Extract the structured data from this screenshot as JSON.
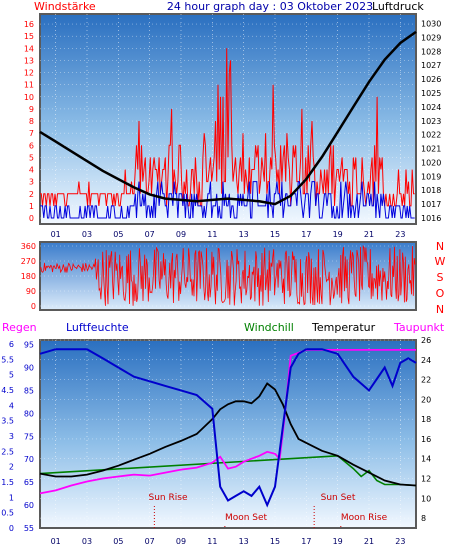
{
  "header": {
    "left": "Windstärke",
    "center": "24 hour graph day : 03 Oktober 2023",
    "right": "Luftdruck"
  },
  "wind_dir_labels": [
    "N",
    "W",
    "S",
    "O",
    "N"
  ],
  "bottom_titles": {
    "regen": "Regen",
    "luftfeuchte": "Luftfeuchte",
    "windchill": "Windchill",
    "temperatur": "Temperatur",
    "taupunkt": "Taupunkt"
  },
  "events": {
    "sun_rise": "Sun Rise",
    "sun_set": "Sun Set",
    "moon_set": "Moon Set",
    "moon_rise": "Moon Rise"
  },
  "colors": {
    "frame": "#5a5a5a",
    "sky_top": "#2a6fc0",
    "sky_bottom": "#f2f8ff",
    "wind_red": "#ff0000",
    "wind_blue": "#0000dd",
    "pressure": "#000000",
    "humidity": "#0000cc",
    "dewpoint": "#ff00ff",
    "windchill": "#008000",
    "temperature": "#000000",
    "events": "#cc0000"
  },
  "chart_data": [
    {
      "type": "line",
      "title": "24 hour graph day : 03 Oktober 2023",
      "x_ticks": [
        "01",
        "03",
        "05",
        "07",
        "09",
        "11",
        "13",
        "15",
        "17",
        "19",
        "21",
        "23"
      ],
      "y_left_label": "Windstärke",
      "y_left_ticks": [
        0,
        1,
        2,
        3,
        4,
        5,
        6,
        7,
        8,
        9,
        10,
        11,
        12,
        13,
        14,
        15,
        16
      ],
      "y_right_label": "Luftdruck",
      "y_right_ticks": [
        1016,
        1017,
        1018,
        1019,
        1020,
        1021,
        1022,
        1023,
        1024,
        1025,
        1026,
        1027,
        1028,
        1029,
        1030
      ],
      "series": [
        {
          "name": "Luftdruck",
          "x": [
            0,
            1,
            2,
            3,
            4,
            5,
            6,
            7,
            8,
            9,
            10,
            11,
            12,
            13,
            14,
            15,
            16,
            17,
            18,
            19,
            20,
            21,
            22,
            23,
            24
          ],
          "values": [
            1022.2,
            1021.5,
            1020.8,
            1020.1,
            1019.4,
            1018.8,
            1018.2,
            1017.7,
            1017.4,
            1017.3,
            1017.2,
            1017.3,
            1017.4,
            1017.3,
            1017.2,
            1017.0,
            1017.6,
            1018.8,
            1020.4,
            1022.2,
            1024.0,
            1025.8,
            1027.4,
            1028.6,
            1029.4
          ]
        }
      ]
    },
    {
      "type": "line",
      "y_left_ticks": [
        0,
        90,
        180,
        270,
        360
      ],
      "series": [
        {
          "name": "",
          "description_values": "random wind direction 0-360"
        }
      ]
    },
    {
      "type": "line",
      "x_ticks": [
        "01",
        "03",
        "05",
        "07",
        "09",
        "11",
        "13",
        "15",
        "17",
        "19",
        "21",
        "23"
      ],
      "y_regen_ticks": [
        0,
        0.5,
        1,
        1.5,
        2,
        2.5,
        3,
        3.5,
        4,
        4.5,
        5,
        5.5,
        6
      ],
      "y_luftfeuchte_ticks": [
        55,
        60,
        65,
        70,
        75,
        80,
        85,
        90,
        95
      ],
      "y_temp_ticks": [
        8,
        10,
        12,
        14,
        16,
        18,
        20,
        22,
        24,
        26
      ],
      "series": [
        {
          "name": "Luftfeuchte",
          "x": [
            0,
            1,
            2,
            3,
            4,
            5,
            6,
            7,
            8,
            9,
            10,
            11,
            11.5,
            12,
            12.5,
            13,
            13.5,
            14,
            14.5,
            15,
            15.5,
            16,
            16.5,
            17,
            18,
            19,
            20,
            21,
            22,
            22.5,
            23,
            23.5,
            24
          ],
          "values": [
            93,
            94,
            94,
            94,
            92,
            90,
            88,
            87,
            86,
            85,
            84,
            81,
            64,
            61,
            62,
            63,
            62,
            64,
            60,
            64,
            77,
            90,
            93,
            94,
            94,
            93,
            88,
            85,
            90,
            86,
            91,
            92,
            91
          ]
        },
        {
          "name": "Temperatur",
          "x": [
            0,
            1,
            2,
            3,
            4,
            5,
            6,
            7,
            8,
            9,
            10,
            11,
            11.5,
            12,
            12.5,
            13,
            13.5,
            14,
            14.5,
            15,
            15.5,
            16,
            16.5,
            17,
            18,
            19,
            20,
            21,
            22,
            23,
            24
          ],
          "values": [
            12.5,
            12.2,
            12.2,
            12.4,
            12.8,
            13.3,
            13.9,
            14.5,
            15.2,
            15.8,
            16.5,
            18.0,
            19.0,
            19.5,
            19.8,
            19.8,
            19.6,
            20.3,
            21.6,
            21.0,
            19.5,
            17.5,
            16.0,
            15.6,
            14.8,
            14.3,
            13.4,
            12.6,
            11.8,
            11.4,
            11.3
          ]
        },
        {
          "name": "Windchill",
          "x": [
            0,
            19,
            20,
            20.5,
            21,
            21.5,
            22,
            23,
            24
          ],
          "values": [
            12.5,
            14.3,
            13.0,
            12.2,
            12.8,
            11.8,
            11.4,
            11.4,
            11.3
          ]
        },
        {
          "name": "Taupunkt",
          "x": [
            0,
            1,
            2,
            3,
            4,
            5,
            6,
            7,
            8,
            9,
            10,
            11,
            11.5,
            12,
            12.5,
            13,
            13.5,
            14,
            14.5,
            15,
            15.3,
            15.6,
            16,
            16.5,
            17,
            18,
            19,
            20,
            21,
            22,
            23,
            24
          ],
          "values": [
            10.5,
            10.8,
            11.3,
            11.7,
            12.0,
            12.2,
            12.4,
            12.3,
            12.6,
            12.9,
            13.1,
            13.6,
            14.2,
            13.0,
            13.2,
            13.7,
            14.0,
            14.3,
            14.7,
            14.5,
            14.0,
            18.0,
            24.4,
            24.7,
            25.0,
            25.0,
            25.0,
            25.0,
            25.0,
            25.0,
            25.0,
            25.0
          ]
        }
      ]
    }
  ]
}
